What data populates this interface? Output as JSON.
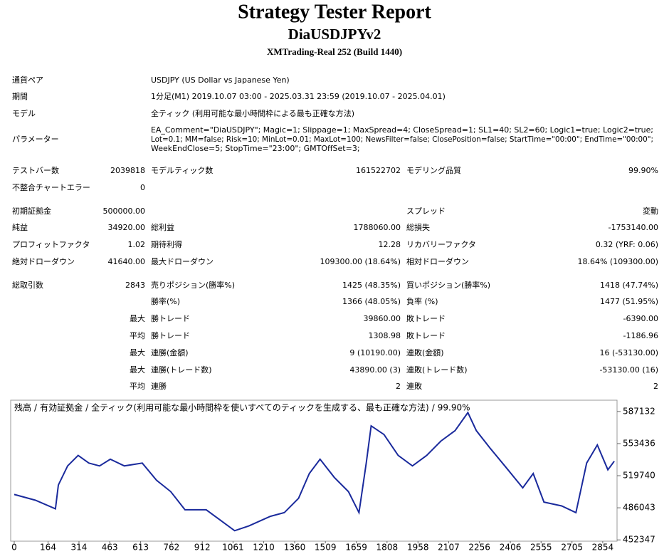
{
  "header": {
    "title": "Strategy Tester Report",
    "subtitle": "DiaUSDJPYv2",
    "server": "XMTrading-Real 252 (Build 1440)"
  },
  "info": [
    [
      "通貨ペア",
      "USDJPY (US Dollar vs Japanese Yen)"
    ],
    [
      "期間",
      "1分足(M1) 2019.10.07 03:00 - 2025.03.31 23:59 (2019.10.07 - 2025.04.01)"
    ],
    [
      "モデル",
      "全ティック (利用可能な最小時間枠による最も正確な方法)"
    ]
  ],
  "parameters": {
    "label": "パラメーター",
    "lines": [
      "EA_Comment=\"DiaUSDJPY\"; Magic=1; Slippage=1; MaxSpread=4; CloseSpread=1; SL1=40; SL2=60; Logic1=true; Logic2=true;",
      "Lot=0.1; MM=false; Risk=10; MinLot=0.01; MaxLot=100; NewsFilter=false; ClosePosition=false; StartTime=\"00:00\"; EndTime=\"00:00\";",
      "WeekEndClose=5; StopTime=\"23:00\"; GMTOffSet=3;"
    ]
  },
  "table": {
    "rows": [
      [
        "テストバー数",
        "2039818",
        "モデルティック数",
        "161522702",
        "モデリング品質",
        "99.90%"
      ],
      [
        "不整合チャートエラー",
        "0",
        null,
        null,
        null,
        null
      ],
      [
        "初期証拠金",
        "500000.00",
        null,
        null,
        "スプレッド",
        "変動"
      ],
      [
        "純益",
        "34920.00",
        "総利益",
        "1788060.00",
        "総損失",
        "-1753140.00"
      ],
      [
        "プロフィットファクタ",
        "1.02",
        "期待利得",
        "12.28",
        "リカバリーファクタ",
        "0.32 (YRF: 0.06)"
      ],
      [
        "絶対ドローダウン",
        "41640.00",
        "最大ドローダウン",
        "109300.00 (18.64%)",
        "相対ドローダウン",
        "18.64% (109300.00)"
      ],
      [
        "総取引数",
        "2843",
        "売りポジション(勝率%)",
        "1425 (48.35%)",
        "買いポジション(勝率%)",
        "1418 (47.74%)"
      ],
      [
        null,
        null,
        "勝率(%)",
        "1366 (48.05%)",
        "負率 (%)",
        "1477 (51.95%)"
      ],
      [
        null,
        "最大",
        "勝トレード",
        "39860.00",
        "敗トレード",
        "-6390.00"
      ],
      [
        null,
        "平均",
        "勝トレード",
        "1308.98",
        "敗トレード",
        "-1186.96"
      ],
      [
        null,
        "最大",
        "連勝(金額)",
        "9 (10190.00)",
        "連敗(金額)",
        "16 (-53130.00)"
      ],
      [
        null,
        "最大",
        "連勝(トレード数)",
        "43890.00 (3)",
        "連敗(トレード数)",
        "-53130.00 (16)"
      ],
      [
        null,
        "平均",
        "連勝",
        "2",
        "連敗",
        "2"
      ]
    ]
  },
  "chart_data": {
    "type": "line",
    "legend": [
      {
        "name": "残高",
        "color": "#1a2a9c"
      },
      {
        "name": "有効証拠金",
        "color": "#2e9a2e"
      }
    ],
    "separator": "/",
    "caption": "全ティック(利用可能な最小時間枠を使いすべてのティックを生成する、最も正確な方法)",
    "quality": "99.90%",
    "x": [
      0,
      103,
      200,
      214,
      259,
      310,
      362,
      414,
      466,
      534,
      621,
      690,
      759,
      828,
      931,
      1000,
      1069,
      1138,
      1241,
      1310,
      1379,
      1431,
      1483,
      1552,
      1621,
      1672,
      1707,
      1731,
      1793,
      1862,
      1931,
      2000,
      2069,
      2138,
      2200,
      2241,
      2310,
      2379,
      2466,
      2517,
      2569,
      2655,
      2724,
      2776,
      2828,
      2879,
      2910
    ],
    "series": [
      {
        "name": "残高",
        "color": "#1a2a9c",
        "values": [
          500000,
          494000,
          485000,
          510000,
          530000,
          541000,
          533000,
          530000,
          537000,
          530000,
          533000,
          515000,
          503000,
          484000,
          484000,
          473000,
          462000,
          467000,
          477000,
          481000,
          496000,
          522000,
          537000,
          518000,
          503000,
          481000,
          533000,
          572000,
          563000,
          541000,
          530000,
          541000,
          556000,
          567000,
          586000,
          567000,
          548000,
          530000,
          507000,
          522000,
          492000,
          488000,
          481000,
          533000,
          552000,
          526000,
          534920
        ]
      }
    ],
    "xlim": [
      0,
      2920
    ],
    "ylim": [
      451000,
      599000
    ],
    "xticks": [
      0,
      164,
      314,
      463,
      613,
      762,
      912,
      1061,
      1210,
      1360,
      1509,
      1659,
      1808,
      1958,
      2107,
      2256,
      2406,
      2555,
      2705,
      2854
    ],
    "yticks": [
      452347,
      486043,
      519740,
      553436,
      587132
    ]
  }
}
